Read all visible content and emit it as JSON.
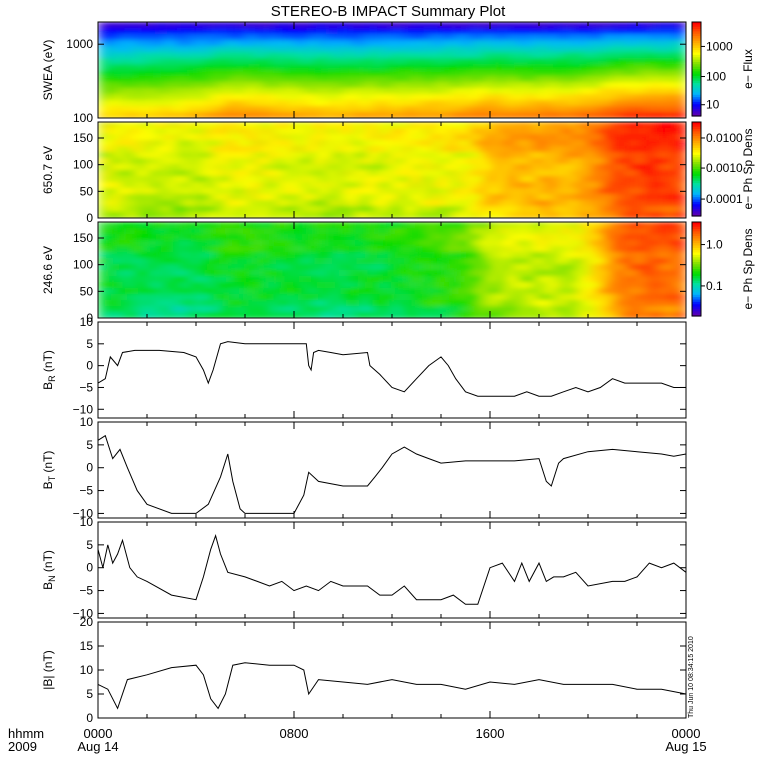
{
  "title": "STEREO-B IMPACT Summary Plot",
  "footer": {
    "label_hhmm": "hhmm",
    "label_year": "2009",
    "x_ticks": [
      "0000",
      "0800",
      "1600",
      "0000"
    ],
    "date_start": "Aug 14",
    "date_end": "Aug 15",
    "timestamp": "Thu Jun 10 08:34:15 2010"
  },
  "colors": {
    "line": "#000000",
    "spectrogram_scale": [
      "#5a00b4",
      "#0000ff",
      "#00b4ff",
      "#00e0a0",
      "#00dc00",
      "#80e000",
      "#ffff00",
      "#ffb000",
      "#ff6000",
      "#ff0000"
    ]
  },
  "chart_data": [
    {
      "type": "heatmap",
      "panel": "swea",
      "ylabel": "SWEA (eV)",
      "y_scale": "log",
      "ylim": [
        100,
        2000
      ],
      "yticks": [
        "1000",
        "100"
      ],
      "colorbar_label": "e− Flux",
      "colorbar_ticks": [
        "1000",
        "100",
        "10"
      ],
      "x_hours": [
        0,
        2,
        4,
        5.5,
        9,
        12,
        15,
        16,
        17,
        19.5,
        21.5,
        24
      ],
      "low_energy_level": [
        0.74,
        0.76,
        0.78,
        0.86,
        0.8,
        0.82,
        0.85,
        0.88,
        0.86,
        0.88,
        0.96,
        0.98
      ]
    },
    {
      "type": "heatmap",
      "panel": "pad_650",
      "ylabel": "650.7 eV",
      "ylim": [
        0,
        180
      ],
      "yticks": [
        "150",
        "100",
        "50",
        "0"
      ],
      "colorbar_label": "e− Ph Sp Dens",
      "colorbar_ticks": [
        "0.0100",
        "0.0010",
        "0.0001"
      ],
      "x_hours": [
        0,
        2,
        4,
        5.5,
        9,
        12,
        15,
        16,
        17,
        19.5,
        21.5,
        24
      ],
      "level": [
        0.64,
        0.62,
        0.6,
        0.66,
        0.62,
        0.64,
        0.66,
        0.74,
        0.76,
        0.78,
        0.92,
        0.94
      ]
    },
    {
      "type": "heatmap",
      "panel": "pad_246",
      "ylabel": "246.6 eV",
      "ylim": [
        0,
        180
      ],
      "yticks": [
        "150",
        "100",
        "50",
        "0"
      ],
      "colorbar_label": "e− Ph Sp Dens",
      "colorbar_ticks": [
        "1.0",
        "0.1"
      ],
      "x_hours": [
        0,
        2,
        4,
        5.5,
        9,
        12,
        15,
        16,
        17,
        19.5,
        21.5,
        24
      ],
      "level": [
        0.42,
        0.4,
        0.38,
        0.44,
        0.4,
        0.42,
        0.48,
        0.58,
        0.6,
        0.62,
        0.86,
        0.88
      ]
    },
    {
      "type": "line",
      "panel": "br",
      "ylabel": "B",
      "ylabel_sub": "R",
      "ylabel_unit": " (nT)",
      "ylim": [
        -12,
        10
      ],
      "yticks": [
        "10",
        "5",
        "0",
        "−5",
        "−10"
      ],
      "x_hours": [
        0,
        0.3,
        0.5,
        0.8,
        1.0,
        1.5,
        2.5,
        3.5,
        4.0,
        4.3,
        4.5,
        4.7,
        5.0,
        5.3,
        6.0,
        7.0,
        8.0,
        8.5,
        8.6,
        8.7,
        8.8,
        9.0,
        9.5,
        10.0,
        11.0,
        11.1,
        11.5,
        12.0,
        12.5,
        13.0,
        13.5,
        14.0,
        14.3,
        14.6,
        15.0,
        15.5,
        16.0,
        17.0,
        17.5,
        18.0,
        18.5,
        19.0,
        19.5,
        20.0,
        20.5,
        21.0,
        21.5,
        22.0,
        23.0,
        23.5,
        24.0
      ],
      "y": [
        -4,
        -3,
        2,
        0,
        3,
        3.5,
        3.5,
        3,
        2,
        -1,
        -4,
        -1,
        5,
        5.5,
        5,
        5,
        5,
        5,
        0,
        -1,
        3,
        3.5,
        3,
        2.5,
        3,
        0,
        -2,
        -5,
        -6,
        -3,
        0,
        2,
        0,
        -3,
        -6,
        -7,
        -7,
        -7,
        -6,
        -7,
        -7,
        -6,
        -5,
        -6,
        -5,
        -3,
        -4,
        -4,
        -4,
        -5,
        -5
      ]
    },
    {
      "type": "line",
      "panel": "bt",
      "ylabel": "B",
      "ylabel_sub": "T",
      "ylabel_unit": " (nT)",
      "ylim": [
        -11,
        10
      ],
      "yticks": [
        "10",
        "5",
        "0",
        "−5",
        "−10"
      ],
      "x_hours": [
        0,
        0.3,
        0.6,
        0.9,
        1.2,
        1.6,
        2.0,
        3.0,
        4.0,
        4.5,
        5.0,
        5.3,
        5.5,
        5.8,
        6.0,
        7.0,
        8.0,
        8.4,
        8.6,
        9.0,
        10.0,
        11.0,
        11.3,
        11.6,
        12.0,
        12.5,
        13.0,
        13.5,
        14.0,
        15.0,
        16.0,
        17.0,
        18.0,
        18.3,
        18.5,
        18.8,
        19.0,
        20.0,
        21.0,
        22.0,
        23.0,
        23.5,
        24.0
      ],
      "y": [
        6,
        7,
        2,
        4,
        0,
        -5,
        -8,
        -10,
        -10,
        -8,
        -2,
        3,
        -3,
        -9,
        -10,
        -10,
        -10,
        -6,
        -1,
        -3,
        -4,
        -4,
        -2,
        0,
        3,
        4.5,
        3,
        2,
        1,
        1.5,
        1.5,
        1.5,
        2,
        -3,
        -4,
        1,
        2,
        3.5,
        4,
        3.5,
        3,
        2.5,
        3
      ]
    },
    {
      "type": "line",
      "panel": "bn",
      "ylabel": "B",
      "ylabel_sub": "N",
      "ylabel_unit": " (nT)",
      "ylim": [
        -11,
        10
      ],
      "yticks": [
        "10",
        "5",
        "0",
        "−5",
        "−10"
      ],
      "x_hours": [
        0,
        0.2,
        0.4,
        0.6,
        0.8,
        1.0,
        1.3,
        1.6,
        2.0,
        3.0,
        4.0,
        4.3,
        4.6,
        4.8,
        5.0,
        5.3,
        6.0,
        6.5,
        7.0,
        7.5,
        8.0,
        8.5,
        9.0,
        9.5,
        10.0,
        11.0,
        11.5,
        12.0,
        12.5,
        13.0,
        14.0,
        14.5,
        15.0,
        15.5,
        16.0,
        16.5,
        17.0,
        17.3,
        17.6,
        18.0,
        18.3,
        18.6,
        19.0,
        19.5,
        20.0,
        21.0,
        21.5,
        22.0,
        22.5,
        23.0,
        23.5,
        24.0
      ],
      "y": [
        4,
        0,
        5,
        1,
        3,
        6,
        0,
        -2,
        -3,
        -6,
        -7,
        -2,
        4,
        7,
        3,
        -1,
        -2,
        -3,
        -4,
        -3,
        -5,
        -4,
        -5,
        -3,
        -4,
        -4,
        -6,
        -6,
        -4,
        -7,
        -7,
        -6,
        -8,
        -8,
        0,
        1,
        -3,
        1,
        -3,
        1,
        -3,
        -2,
        -2,
        -1,
        -4,
        -3,
        -3,
        -2,
        1,
        0,
        1,
        -1
      ]
    },
    {
      "type": "line",
      "panel": "babs",
      "ylabel": "|B| (nT)",
      "ylim": [
        0,
        20
      ],
      "yticks": [
        "20",
        "15",
        "10",
        "5",
        "0"
      ],
      "x_hours": [
        0,
        0.4,
        0.8,
        1.2,
        2.0,
        3.0,
        4.0,
        4.3,
        4.6,
        4.9,
        5.2,
        5.5,
        6.0,
        7.0,
        8.0,
        8.4,
        8.6,
        9.0,
        10.0,
        11.0,
        12.0,
        13.0,
        14.0,
        15.0,
        16.0,
        17.0,
        18.0,
        19.0,
        20.0,
        21.0,
        22.0,
        23.0,
        23.5,
        24.0
      ],
      "y": [
        7,
        6,
        2,
        8,
        9,
        10.5,
        11,
        9,
        4,
        2,
        5,
        11,
        11.5,
        11,
        11,
        10,
        5,
        8,
        7.5,
        7,
        8,
        7,
        7,
        6,
        7.5,
        7,
        8,
        7,
        7,
        7,
        6,
        6,
        5.5,
        5
      ]
    }
  ]
}
